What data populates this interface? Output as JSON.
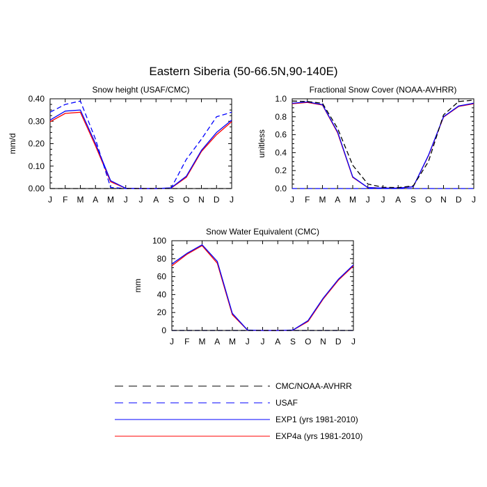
{
  "title": "Eastern Siberia (50-66.5N,90-140E)",
  "months": [
    "J",
    "F",
    "M",
    "A",
    "M",
    "J",
    "J",
    "A",
    "S",
    "O",
    "N",
    "D",
    "J"
  ],
  "legend": [
    {
      "label": "CMC/NOAA-AVHRR",
      "color": "#000000",
      "dashed": true
    },
    {
      "label": "USAF",
      "color": "#0000ff",
      "dashed": true
    },
    {
      "label": "EXP1 (yrs 1981-2010)",
      "color": "#0000ff",
      "dashed": false
    },
    {
      "label": "EXP4a (yrs 1981-2010)",
      "color": "#ff0000",
      "dashed": false
    }
  ],
  "chart_data": [
    {
      "type": "line",
      "title": "Snow height (USAF/CMC)",
      "ylabel": "mm/d",
      "ylim": [
        0,
        0.4
      ],
      "yticks": [
        "0.00",
        "0.10",
        "0.20",
        "0.30",
        "0.40"
      ],
      "x": [
        "J",
        "F",
        "M",
        "A",
        "M",
        "J",
        "J",
        "A",
        "S",
        "O",
        "N",
        "D",
        "J"
      ],
      "series": [
        {
          "name": "CMC/NOAA-AVHRR",
          "values": [
            0,
            0,
            0,
            0,
            0,
            0,
            0,
            0,
            0,
            0,
            0,
            0,
            0
          ]
        },
        {
          "name": "USAF",
          "values": [
            0.34,
            0.375,
            0.39,
            0.22,
            0.005,
            0,
            0,
            0,
            0.002,
            0.13,
            0.22,
            0.32,
            0.34
          ]
        },
        {
          "name": "EXP1 (yrs 1981-2010)",
          "values": [
            0.305,
            0.345,
            0.35,
            0.2,
            0.035,
            0.001,
            0,
            0,
            0.003,
            0.055,
            0.17,
            0.25,
            0.305
          ]
        },
        {
          "name": "EXP4a (yrs 1981-2010)",
          "values": [
            0.298,
            0.335,
            0.34,
            0.19,
            0.03,
            0.001,
            0,
            0,
            0.002,
            0.05,
            0.165,
            0.24,
            0.298
          ]
        }
      ]
    },
    {
      "type": "line",
      "title": "Fractional Snow Cover (NOAA-AVHRR)",
      "ylabel": "unitless",
      "ylim": [
        0,
        1
      ],
      "yticks": [
        "0.0",
        "0.2",
        "0.4",
        "0.6",
        "0.8",
        "1.0"
      ],
      "x": [
        "J",
        "F",
        "M",
        "A",
        "M",
        "J",
        "J",
        "A",
        "S",
        "O",
        "N",
        "D",
        "J"
      ],
      "series": [
        {
          "name": "CMC/NOAA-AVHRR",
          "values": [
            0.975,
            0.97,
            0.95,
            0.67,
            0.26,
            0.05,
            0.015,
            0.01,
            0.03,
            0.3,
            0.82,
            0.97,
            0.985
          ]
        },
        {
          "name": "USAF",
          "values": [
            0,
            0,
            0,
            0,
            0,
            0,
            0,
            0,
            0,
            0,
            0,
            0,
            0
          ]
        },
        {
          "name": "EXP1 (yrs 1981-2010)",
          "values": [
            0.95,
            0.965,
            0.935,
            0.63,
            0.13,
            0.01,
            0.005,
            0.005,
            0.02,
            0.37,
            0.8,
            0.92,
            0.95
          ]
        },
        {
          "name": "EXP4a (yrs 1981-2010)",
          "values": [
            0.945,
            0.96,
            0.93,
            0.62,
            0.125,
            0.01,
            0.005,
            0.005,
            0.02,
            0.365,
            0.795,
            0.915,
            0.945
          ]
        }
      ]
    },
    {
      "type": "line",
      "title": "Snow Water Equivalent (CMC)",
      "ylabel": "mm",
      "ylim": [
        0,
        100
      ],
      "yticks": [
        "0",
        "20",
        "40",
        "60",
        "80",
        "100"
      ],
      "x": [
        "J",
        "F",
        "M",
        "A",
        "M",
        "J",
        "J",
        "A",
        "S",
        "O",
        "N",
        "D",
        "J"
      ],
      "series": [
        {
          "name": "CMC/NOAA-AVHRR",
          "values": [
            0,
            0,
            0,
            0,
            0,
            0,
            0,
            0,
            0,
            0,
            0,
            0,
            0
          ]
        },
        {
          "name": "USAF",
          "values": [
            0,
            0,
            0,
            0,
            0,
            0,
            0,
            0,
            0,
            0,
            0,
            0,
            0
          ]
        },
        {
          "name": "EXP1 (yrs 1981-2010)",
          "values": [
            74,
            86,
            95.5,
            77,
            19,
            0.5,
            0,
            0,
            0.5,
            11,
            36,
            57,
            73
          ]
        },
        {
          "name": "EXP4a (yrs 1981-2010)",
          "values": [
            72,
            85,
            94.5,
            75,
            17.5,
            0.4,
            0,
            0,
            0.4,
            10,
            35,
            56,
            72
          ]
        }
      ]
    }
  ]
}
